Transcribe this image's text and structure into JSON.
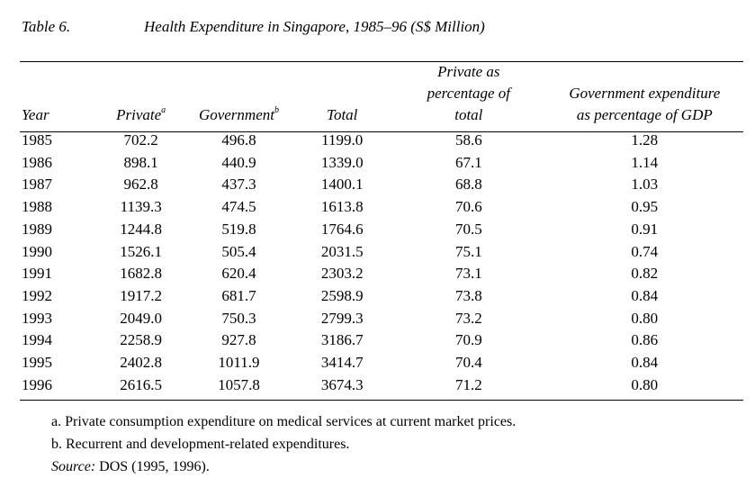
{
  "caption": {
    "label": "Table 6.",
    "title": "Health Expenditure in Singapore, 1985–96 (S$ Million)"
  },
  "headers": {
    "year": "Year",
    "private": "Private",
    "private_note": "a",
    "government": "Government",
    "government_note": "b",
    "total": "Total",
    "private_pct_line1": "Private as",
    "private_pct_line2": "percentage of",
    "private_pct_line3": "total",
    "gov_gdp_line1": "Government expenditure",
    "gov_gdp_line2": "as percentage of GDP"
  },
  "rows": [
    {
      "year": "1985",
      "private": "702.2",
      "government": "496.8",
      "total": "1199.0",
      "private_pct": "58.6",
      "gov_gdp": "1.28"
    },
    {
      "year": "1986",
      "private": "898.1",
      "government": "440.9",
      "total": "1339.0",
      "private_pct": "67.1",
      "gov_gdp": "1.14"
    },
    {
      "year": "1987",
      "private": "962.8",
      "government": "437.3",
      "total": "1400.1",
      "private_pct": "68.8",
      "gov_gdp": "1.03"
    },
    {
      "year": "1988",
      "private": "1139.3",
      "government": "474.5",
      "total": "1613.8",
      "private_pct": "70.6",
      "gov_gdp": "0.95"
    },
    {
      "year": "1989",
      "private": "1244.8",
      "government": "519.8",
      "total": "1764.6",
      "private_pct": "70.5",
      "gov_gdp": "0.91"
    },
    {
      "year": "1990",
      "private": "1526.1",
      "government": "505.4",
      "total": "2031.5",
      "private_pct": "75.1",
      "gov_gdp": "0.74"
    },
    {
      "year": "1991",
      "private": "1682.8",
      "government": "620.4",
      "total": "2303.2",
      "private_pct": "73.1",
      "gov_gdp": "0.82"
    },
    {
      "year": "1992",
      "private": "1917.2",
      "government": "681.7",
      "total": "2598.9",
      "private_pct": "73.8",
      "gov_gdp": "0.84"
    },
    {
      "year": "1993",
      "private": "2049.0",
      "government": "750.3",
      "total": "2799.3",
      "private_pct": "73.2",
      "gov_gdp": "0.80"
    },
    {
      "year": "1994",
      "private": "2258.9",
      "government": "927.8",
      "total": "3186.7",
      "private_pct": "70.9",
      "gov_gdp": "0.86"
    },
    {
      "year": "1995",
      "private": "2402.8",
      "government": "1011.9",
      "total": "3414.7",
      "private_pct": "70.4",
      "gov_gdp": "0.84"
    },
    {
      "year": "1996",
      "private": "2616.5",
      "government": "1057.8",
      "total": "3674.3",
      "private_pct": "71.2",
      "gov_gdp": "0.80"
    }
  ],
  "notes": {
    "a": "a. Private consumption expenditure on medical services at current market prices.",
    "b": "b. Recurrent and development-related expenditures.",
    "source_label": "Source:",
    "source_text": " DOS (1995, 1996)."
  }
}
